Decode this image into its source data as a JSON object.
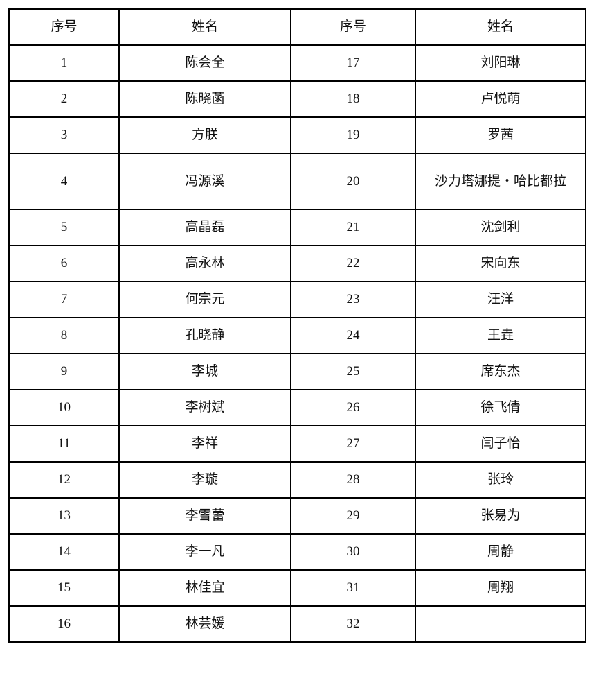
{
  "headers": [
    "序号",
    "姓名",
    "序号",
    "姓名"
  ],
  "rows": [
    {
      "no1": "1",
      "name1": "陈会全",
      "no2": "17",
      "name2": "刘阳琳"
    },
    {
      "no1": "2",
      "name1": "陈晓菡",
      "no2": "18",
      "name2": "卢悦萌"
    },
    {
      "no1": "3",
      "name1": "方朕",
      "no2": "19",
      "name2": "罗茜"
    },
    {
      "no1": "4",
      "name1": "冯源溪",
      "no2": "20",
      "name2": "沙力塔娜提・哈比都拉"
    },
    {
      "no1": "5",
      "name1": "高晶磊",
      "no2": "21",
      "name2": "沈剑利"
    },
    {
      "no1": "6",
      "name1": "高永林",
      "no2": "22",
      "name2": "宋向东"
    },
    {
      "no1": "7",
      "name1": "何宗元",
      "no2": "23",
      "name2": "汪洋"
    },
    {
      "no1": "8",
      "name1": "孔晓静",
      "no2": "24",
      "name2": "王垚"
    },
    {
      "no1": "9",
      "name1": "李城",
      "no2": "25",
      "name2": "席东杰"
    },
    {
      "no1": "10",
      "name1": "李树斌",
      "no2": "26",
      "name2": "徐飞倩"
    },
    {
      "no1": "11",
      "name1": "李祥",
      "no2": "27",
      "name2": "闫子怡"
    },
    {
      "no1": "12",
      "name1": "李璇",
      "no2": "28",
      "name2": "张玲"
    },
    {
      "no1": "13",
      "name1": "李雪蕾",
      "no2": "29",
      "name2": "张易为"
    },
    {
      "no1": "14",
      "name1": "李一凡",
      "no2": "30",
      "name2": "周静"
    },
    {
      "no1": "15",
      "name1": "林佳宜",
      "no2": "31",
      "name2": "周翔"
    },
    {
      "no1": "16",
      "name1": "林芸媛",
      "no2": "32",
      "name2": ""
    }
  ]
}
